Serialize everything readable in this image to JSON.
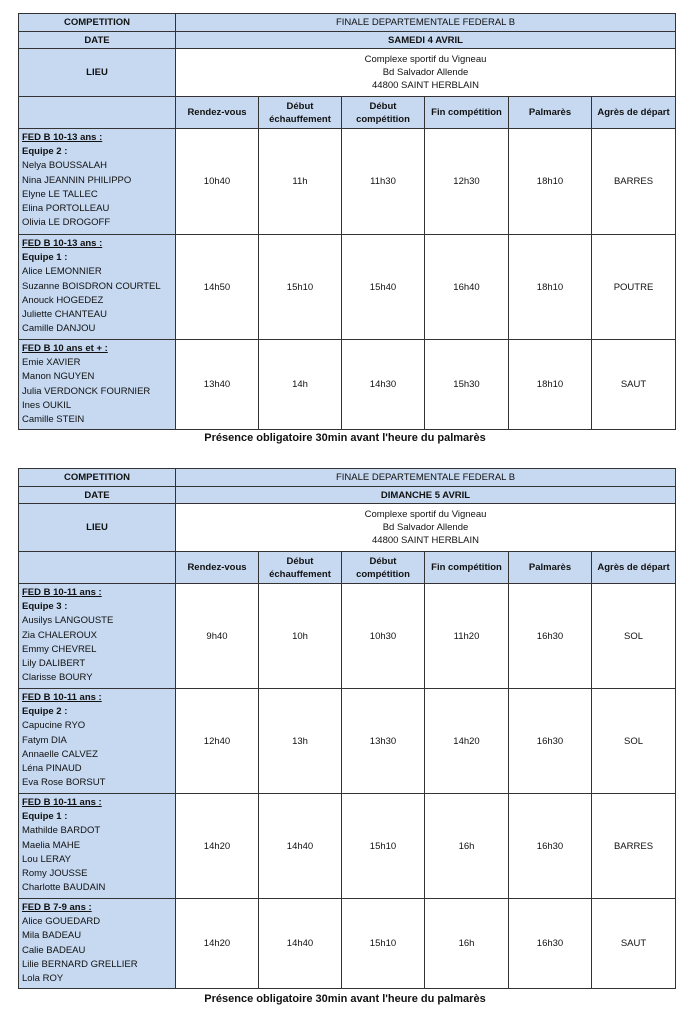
{
  "colors": {
    "header_fill": "#c6d9f1",
    "border": "#333333"
  },
  "days": [
    {
      "competition_label": "COMPETITION",
      "competition": "FINALE DEPARTEMENTALE FEDERAL B",
      "date_label": "DATE",
      "date": "SAMEDI 4 AVRIL",
      "lieu_label": "LIEU",
      "lieu": [
        "Complexe sportif du Vigneau",
        "Bd Salvador Allende",
        "44800 SAINT HERBLAIN"
      ],
      "columns": [
        "Rendez-vous",
        "Début échauffement",
        "Début compétition",
        "Fin compétition",
        "Palmarès",
        "Agrès de départ"
      ],
      "rows": [
        {
          "category": "FED B 10-13 ans :",
          "team": "Equipe 2 :",
          "members": [
            "Nelya BOUSSALAH",
            "Nina JEANNIN PHILIPPO",
            "Elyne LE TALLEC",
            "Elina PORTOLLEAU",
            "Olivia LE DROGOFF"
          ],
          "values": [
            "10h40",
            "11h",
            "11h30",
            "12h30",
            "18h10",
            "BARRES"
          ]
        },
        {
          "category": "FED B 10-13 ans :",
          "team": "Equipe 1 :",
          "members": [
            "Alice LEMONNIER",
            "Suzanne BOISDRON COURTEL",
            "Anouck HOGEDEZ",
            "Juliette CHANTEAU",
            "Camille DANJOU"
          ],
          "values": [
            "14h50",
            "15h10",
            "15h40",
            "16h40",
            "18h10",
            "POUTRE"
          ]
        },
        {
          "category": "FED B 10 ans et + :",
          "team": "",
          "members": [
            "Emie XAVIER",
            "Manon NGUYEN",
            "Julia VERDONCK FOURNIER",
            "Ines OUKIL",
            "Camille STEIN"
          ],
          "values": [
            "13h40",
            "14h",
            "14h30",
            "15h30",
            "18h10",
            "SAUT"
          ]
        }
      ],
      "note": "Présence obligatoire 30min avant l'heure du palmarès"
    },
    {
      "competition_label": "COMPETITION",
      "competition": "FINALE DEPARTEMENTALE FEDERAL B",
      "date_label": "DATE",
      "date": "DIMANCHE 5 AVRIL",
      "lieu_label": "LIEU",
      "lieu": [
        "Complexe sportif du Vigneau",
        "Bd Salvador Allende",
        "44800 SAINT HERBLAIN"
      ],
      "columns": [
        "Rendez-vous",
        "Début échauffement",
        "Début compétition",
        "Fin compétition",
        "Palmarès",
        "Agrès de départ"
      ],
      "rows": [
        {
          "category": "FED B 10-11 ans :",
          "team": "Equipe 3 :",
          "members": [
            "Ausilys LANGOUSTE",
            "Zia CHALEROUX",
            "Emmy CHEVREL",
            "Lily DALIBERT",
            "Clarisse BOURY"
          ],
          "values": [
            "9h40",
            "10h",
            "10h30",
            "11h20",
            "16h30",
            "SOL"
          ]
        },
        {
          "category": "FED B 10-11 ans :",
          "team": "Equipe 2 :",
          "members": [
            "Capucine RYO",
            "Fatym DIA",
            "Annaelle CALVEZ",
            "Léna PINAUD",
            "Eva Rose BORSUT"
          ],
          "values": [
            "12h40",
            "13h",
            "13h30",
            "14h20",
            "16h30",
            "SOL"
          ]
        },
        {
          "category": "FED B 10-11 ans :",
          "team": "Equipe 1 :",
          "members": [
            "Mathilde BARDOT",
            "Maelia MAHE",
            "Lou LERAY",
            "Romy JOUSSE",
            "Charlotte BAUDAIN"
          ],
          "values": [
            "14h20",
            "14h40",
            "15h10",
            "16h",
            "16h30",
            "BARRES"
          ]
        },
        {
          "category": "FED B 7-9 ans :",
          "team": "",
          "members": [
            "Alice GOUEDARD",
            "Mila BADEAU",
            "Calie BADEAU",
            "Lilie BERNARD GRELLIER",
            "Lola ROY"
          ],
          "values": [
            "14h20",
            "14h40",
            "15h10",
            "16h",
            "16h30",
            "SAUT"
          ]
        }
      ],
      "note": "Présence obligatoire 30min avant l'heure du palmarès"
    }
  ]
}
